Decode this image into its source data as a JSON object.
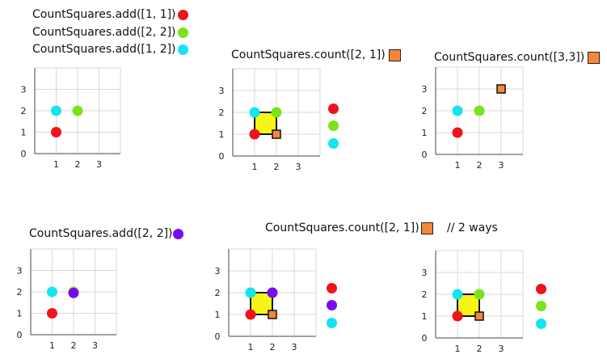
{
  "colors": {
    "red": "#f0131b",
    "green": "#7be31a",
    "cyan": "#13e4f2",
    "purple": "#7a0bf0",
    "yellow": "#f6f515",
    "query": "#f5873b",
    "grid": "#d8d8d8",
    "axis": "#444444"
  },
  "captions": {
    "add1": "CountSquares.add([1, 1])",
    "add2": "CountSquares.add([2, 2])",
    "add3": "CountSquares.add([1, 2])",
    "count1": "CountSquares.count([2, 1])",
    "count2": "CountSquares.count([3,3])",
    "add4": "CountSquares.add([2, 2])",
    "count3": "CountSquares.count([2, 1])",
    "ways_note": "// 2 ways"
  },
  "ticks": [
    "0",
    "1",
    "2",
    "3"
  ],
  "panels": [
    {
      "id": "p1",
      "points": [
        {
          "x": 1,
          "y": 2,
          "c": "cyan"
        },
        {
          "x": 2,
          "y": 2,
          "c": "green"
        },
        {
          "x": 1,
          "y": 1,
          "c": "red"
        }
      ]
    },
    {
      "id": "p2",
      "points": [
        {
          "x": 1,
          "y": 2,
          "c": "cyan"
        },
        {
          "x": 2,
          "y": 2,
          "c": "green"
        },
        {
          "x": 1,
          "y": 1,
          "c": "red"
        }
      ],
      "query": {
        "x": 2,
        "y": 1
      },
      "square": [
        1,
        1,
        2,
        2
      ]
    },
    {
      "id": "p3",
      "points": [
        {
          "x": 1,
          "y": 2,
          "c": "cyan"
        },
        {
          "x": 2,
          "y": 2,
          "c": "green"
        },
        {
          "x": 1,
          "y": 1,
          "c": "red"
        }
      ],
      "query": {
        "x": 3,
        "y": 3
      }
    },
    {
      "id": "p4",
      "points": [
        {
          "x": 1,
          "y": 2,
          "c": "cyan"
        },
        {
          "x": 2,
          "y": 2,
          "c": "green"
        },
        {
          "x": 2,
          "y": 1.95,
          "c": "purple"
        },
        {
          "x": 1,
          "y": 1,
          "c": "red"
        }
      ]
    },
    {
      "id": "p5",
      "points": [
        {
          "x": 1,
          "y": 2,
          "c": "cyan"
        },
        {
          "x": 2,
          "y": 2,
          "c": "purple"
        },
        {
          "x": 1,
          "y": 1,
          "c": "red"
        }
      ],
      "query": {
        "x": 2,
        "y": 1
      },
      "square": [
        1,
        1,
        2,
        2
      ]
    },
    {
      "id": "p6",
      "points": [
        {
          "x": 1,
          "y": 2,
          "c": "cyan"
        },
        {
          "x": 2,
          "y": 2,
          "c": "green"
        },
        {
          "x": 1,
          "y": 1,
          "c": "red"
        }
      ],
      "query": {
        "x": 2,
        "y": 1
      },
      "square": [
        1,
        1,
        2,
        2
      ]
    }
  ],
  "legend_columns": [
    {
      "id": "lg2",
      "dots": [
        "red",
        "green",
        "cyan"
      ]
    },
    {
      "id": "lg5",
      "dots": [
        "red",
        "purple",
        "cyan"
      ]
    },
    {
      "id": "lg6",
      "dots": [
        "red",
        "green",
        "cyan"
      ]
    }
  ]
}
